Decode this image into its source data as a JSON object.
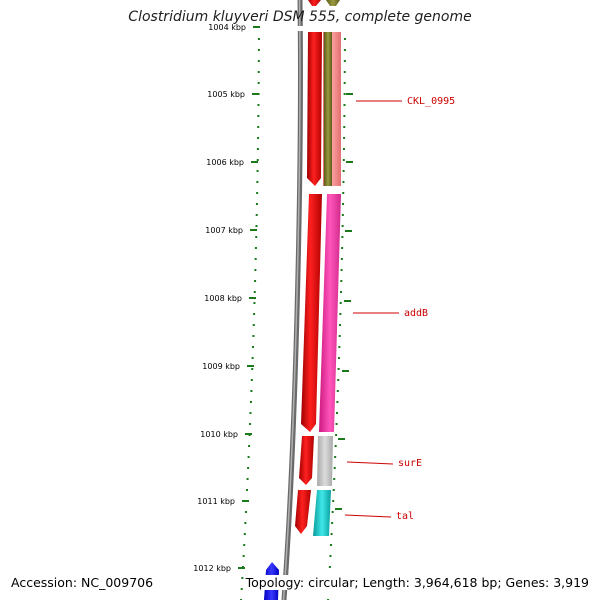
{
  "title": "Clostridium kluyveri DSM 555, complete genome",
  "accession": "Accession: NC_009706",
  "summary": "Topology: circular; Length: 3,964,618 bp; Genes: 3,919",
  "ticks": [
    {
      "label": "1004 kbp"
    },
    {
      "label": "1005 kbp"
    },
    {
      "label": "1006 kbp"
    },
    {
      "label": "1007 kbp"
    },
    {
      "label": "1008 kbp"
    },
    {
      "label": "1009 kbp"
    },
    {
      "label": "1010 kbp"
    },
    {
      "label": "1011 kbp"
    },
    {
      "label": "1012 kbp"
    }
  ],
  "gene_labels": [
    {
      "name": "CKL_0995"
    },
    {
      "name": "addB"
    },
    {
      "name": "surE"
    },
    {
      "name": "tal"
    }
  ],
  "colors": {
    "cds_forward": "#e00000",
    "addB": "#ff33aa",
    "CKL_0995_outer": "#f08080",
    "CKL_0995_inner": "#7a7a2a",
    "surE": "#c0c0c0",
    "tal": "#18c8c8",
    "reverse_gene": "#1010e0",
    "backbone": "#808080",
    "gc_dots": "#1a7a1a",
    "label_text": "#cc0000"
  }
}
